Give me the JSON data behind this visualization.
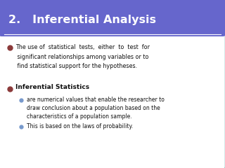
{
  "title": "2.   Inferential Analysis",
  "title_bg_color": "#6666cc",
  "title_text_color": "#ffffff",
  "body_bg_color": "#ffffff",
  "border_color": "#55aaaa",
  "bullet_marker_color": "#8b3a3a",
  "sub_bullet_marker_color": "#7799cc",
  "text_color": "#111111",
  "bullet1_lines": [
    "The use of  statistical  tests,  either  to  test  for",
    " significant relationships among variables or to",
    " find statistical support for the hypotheses."
  ],
  "bullet2_header": "Inferential Statistics",
  "sub_bullet1_lines": [
    "are numerical values that enable the researcher to",
    "draw conclusion about a population based on the",
    "characteristics of a population sample."
  ],
  "sub_bullet2": "This is based on the laws of probability.",
  "font_size_title": 11.5,
  "font_size_body": 5.8,
  "font_size_subbody": 5.5,
  "font_size_bold": 6.5
}
